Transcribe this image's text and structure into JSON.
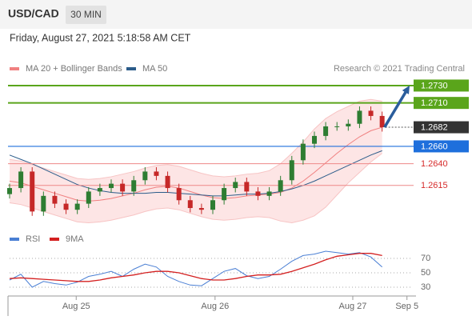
{
  "header": {
    "symbol": "USD/CAD",
    "timeframe": "30 MIN",
    "timestamp": "Friday, August 27, 2021 5:18:58 AM CET"
  },
  "chart_data": [
    {
      "type": "candlestick",
      "credit": "Research © 2021 Trading Central",
      "xlim": [
        0,
        36
      ],
      "ylim": [
        1.2566,
        1.2741
      ],
      "open": [
        1.2605,
        1.2612,
        1.2631,
        1.2585,
        1.2603,
        1.2594,
        1.2587,
        1.2594,
        1.2608,
        1.2612,
        1.2617,
        1.2608,
        1.2621,
        1.2631,
        1.2626,
        1.2612,
        1.2598,
        1.2589,
        1.2587,
        1.2598,
        1.2612,
        1.2619,
        1.2608,
        1.2603,
        1.2608,
        1.2621,
        1.2644,
        1.2663,
        1.2672,
        1.2683,
        1.2683,
        1.2686,
        1.2701,
        1.2695
      ],
      "high": [
        1.2617,
        1.2636,
        1.2636,
        1.2608,
        1.2608,
        1.2599,
        1.2599,
        1.2613,
        1.2617,
        1.2622,
        1.2622,
        1.2626,
        1.2636,
        1.2636,
        1.2631,
        1.2617,
        1.2603,
        1.2594,
        1.2603,
        1.2617,
        1.2624,
        1.2624,
        1.2613,
        1.2613,
        1.2626,
        1.2649,
        1.2668,
        1.2677,
        1.2688,
        1.2688,
        1.2691,
        1.2706,
        1.2706,
        1.27
      ],
      "low": [
        1.26,
        1.2607,
        1.258,
        1.258,
        1.2589,
        1.2582,
        1.2582,
        1.2589,
        1.2603,
        1.2607,
        1.2603,
        1.2603,
        1.2616,
        1.2621,
        1.2607,
        1.2593,
        1.2584,
        1.2582,
        1.2582,
        1.2593,
        1.2607,
        1.2603,
        1.2598,
        1.2598,
        1.2603,
        1.2616,
        1.2639,
        1.2658,
        1.2667,
        1.2678,
        1.2678,
        1.2681,
        1.269,
        1.2677
      ],
      "close": [
        1.2612,
        1.2631,
        1.2585,
        1.2603,
        1.2594,
        1.2587,
        1.2594,
        1.2608,
        1.2612,
        1.2617,
        1.2608,
        1.2621,
        1.2631,
        1.2626,
        1.2612,
        1.2598,
        1.2589,
        1.2587,
        1.2598,
        1.2612,
        1.2619,
        1.2608,
        1.2603,
        1.2608,
        1.2621,
        1.2644,
        1.2663,
        1.2672,
        1.2683,
        1.2683,
        1.2686,
        1.2701,
        1.2695,
        1.2682
      ],
      "up_color": "#2e7d32",
      "down_color": "#c62828",
      "series": [
        {
          "name": "MA 20 + Bollinger Bands",
          "color": "#f08080",
          "values": [
            1.262,
            1.2618,
            1.2614,
            1.261,
            1.2606,
            1.2602,
            1.2598,
            1.2597,
            1.2598,
            1.26,
            1.2603,
            1.2606,
            1.261,
            1.2613,
            1.2614,
            1.2612,
            1.2608,
            1.2604,
            1.2601,
            1.26,
            1.2601,
            1.2603,
            1.2604,
            1.2605,
            1.2607,
            1.2612,
            1.262,
            1.263,
            1.2641,
            1.2652,
            1.2662,
            1.2671,
            1.2678,
            1.2682
          ],
          "upper": [
            1.2645,
            1.2643,
            1.2639,
            1.2635,
            1.2631,
            1.2627,
            1.2623,
            1.2622,
            1.2623,
            1.2625,
            1.2628,
            1.2631,
            1.2635,
            1.2638,
            1.2639,
            1.2637,
            1.2633,
            1.2629,
            1.2626,
            1.2625,
            1.2626,
            1.2628,
            1.2629,
            1.2632,
            1.264,
            1.2652,
            1.2665,
            1.268,
            1.2692,
            1.27,
            1.2706,
            1.2712,
            1.2714,
            1.2712
          ],
          "lower": [
            1.2595,
            1.2593,
            1.2589,
            1.2585,
            1.2581,
            1.2577,
            1.2573,
            1.2572,
            1.2573,
            1.2575,
            1.2578,
            1.2581,
            1.2585,
            1.2588,
            1.2589,
            1.2587,
            1.2583,
            1.2579,
            1.2576,
            1.2575,
            1.2576,
            1.2578,
            1.2579,
            1.2578,
            1.2574,
            1.2572,
            1.2575,
            1.258,
            1.259,
            1.2604,
            1.2618,
            1.263,
            1.2642,
            1.2652
          ]
        },
        {
          "name": "MA 50",
          "color": "#2b5c8a",
          "values": [
            1.265,
            1.2645,
            1.264,
            1.2634,
            1.2628,
            1.2622,
            1.2616,
            1.2612,
            1.2609,
            1.2607,
            1.2606,
            1.2606,
            1.2606,
            1.2607,
            1.2607,
            1.2606,
            1.2605,
            1.2604,
            1.2603,
            1.2603,
            1.2604,
            1.2605,
            1.2605,
            1.2606,
            1.2608,
            1.2611,
            1.2615,
            1.262,
            1.2626,
            1.2632,
            1.2638,
            1.2644,
            1.265,
            1.2655
          ]
        }
      ],
      "levels": [
        {
          "value": 1.273,
          "label": "1.2730",
          "color": "#5aa51b",
          "boxed": true
        },
        {
          "value": 1.271,
          "label": "1.2710",
          "color": "#5aa51b",
          "boxed": true
        },
        {
          "value": 1.2682,
          "label": "1.2682",
          "color": "#333333",
          "boxed": true
        },
        {
          "value": 1.266,
          "label": "1.2660",
          "color": "#1e6fdc",
          "boxed": true
        },
        {
          "value": 1.264,
          "label": "1.2640",
          "color": "#d62b2b",
          "boxed": false
        },
        {
          "value": 1.2615,
          "label": "1.2615",
          "color": "#d62b2b",
          "boxed": false
        }
      ]
    },
    {
      "type": "line",
      "xlim": [
        0,
        36
      ],
      "ylim": [
        20,
        100
      ],
      "yticks": [
        30,
        50,
        70
      ],
      "xticks": [
        {
          "value": 5.9,
          "label": "Aug 25"
        },
        {
          "value": 18.2,
          "label": "Aug 26"
        },
        {
          "value": 30.4,
          "label": "Aug 27"
        },
        {
          "value": 35.2,
          "label": "Sep 5"
        }
      ],
      "series": [
        {
          "name": "RSI",
          "color": "#4a7fd4",
          "values": [
            40,
            48,
            30,
            38,
            35,
            33,
            37,
            45,
            48,
            52,
            45,
            55,
            62,
            58,
            45,
            38,
            33,
            32,
            42,
            52,
            56,
            46,
            42,
            45,
            55,
            66,
            74,
            76,
            80,
            78,
            76,
            78,
            72,
            58
          ]
        },
        {
          "name": "9MA",
          "color": "#d42020",
          "values": [
            42,
            43,
            42,
            41,
            40,
            39,
            38,
            38,
            40,
            43,
            45,
            47,
            50,
            52,
            52,
            50,
            46,
            42,
            40,
            40,
            42,
            45,
            47,
            47,
            48,
            52,
            57,
            62,
            68,
            73,
            75,
            77,
            77,
            74
          ]
        }
      ]
    }
  ]
}
